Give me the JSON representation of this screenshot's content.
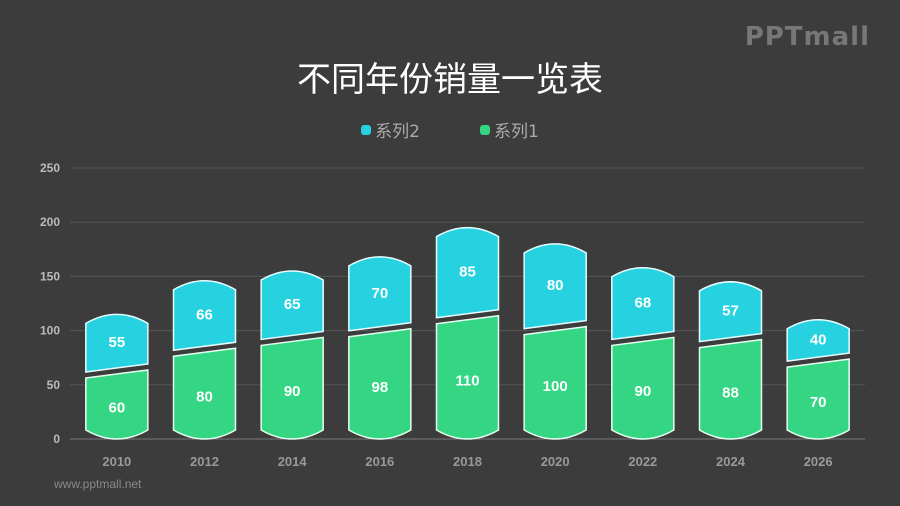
{
  "logo": "PPTmall",
  "website": "www.pptmall.net",
  "colors": {
    "series1": "#34d683",
    "series2": "#27d2e0",
    "grid": "#555555",
    "axis_text": "#bbbbbb"
  },
  "chart_data": {
    "type": "bar",
    "stacked": true,
    "title": "不同年份销量一览表",
    "categories": [
      "2010",
      "2012",
      "2014",
      "2016",
      "2018",
      "2020",
      "2022",
      "2024",
      "2026"
    ],
    "series": [
      {
        "name": "系列1",
        "values": [
          60,
          80,
          90,
          98,
          110,
          100,
          90,
          88,
          70
        ]
      },
      {
        "name": "系列2",
        "values": [
          55,
          66,
          65,
          70,
          85,
          80,
          68,
          57,
          40
        ]
      }
    ],
    "legend_order": [
      "系列2",
      "系列1"
    ],
    "ylim": [
      0,
      250
    ],
    "yticks": [
      0,
      50,
      100,
      150,
      200,
      250
    ],
    "grid": true,
    "legend": "top-center",
    "xlabel": "",
    "ylabel": ""
  }
}
